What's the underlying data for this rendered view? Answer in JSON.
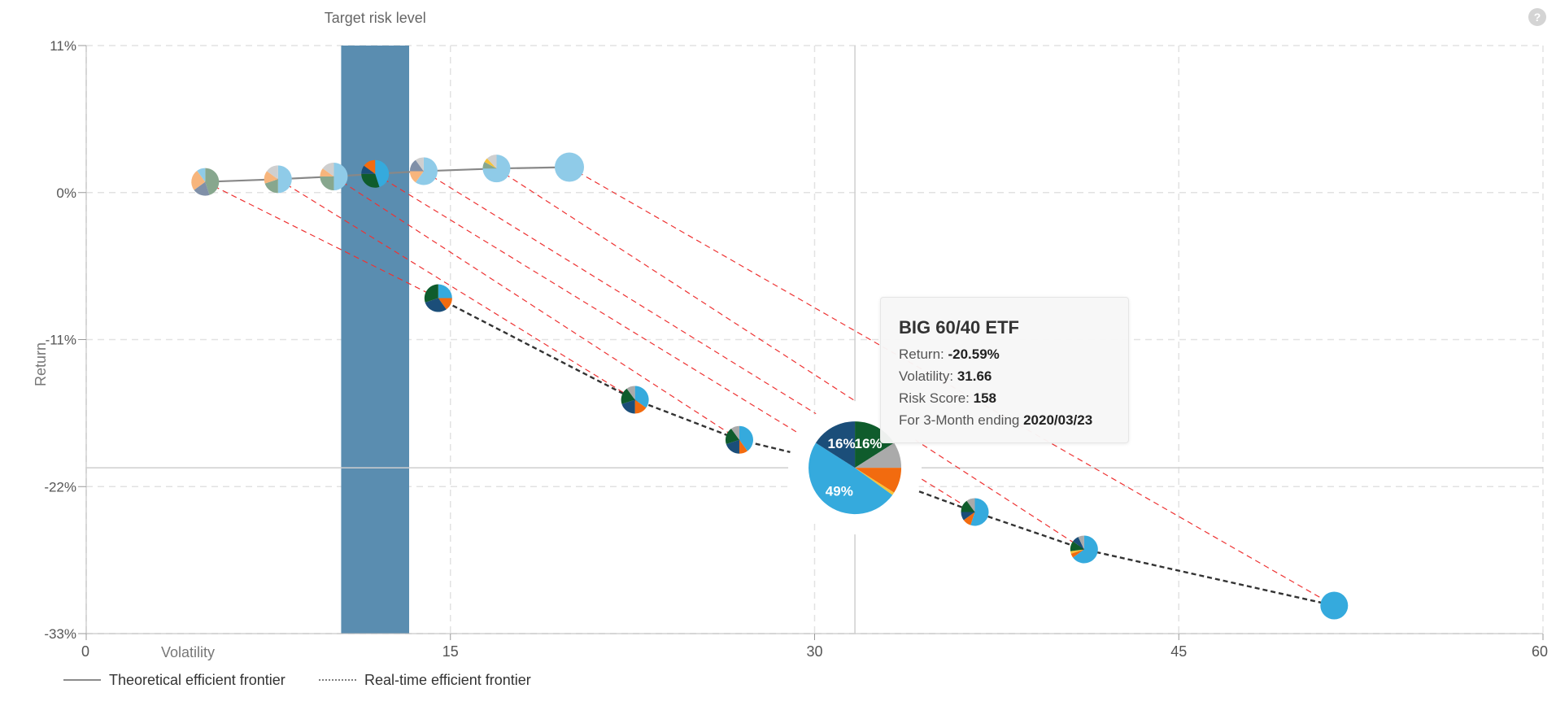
{
  "help": {
    "label": "?"
  },
  "chart_data": {
    "type": "scatter",
    "title": "",
    "xlabel": "Volatility",
    "ylabel": "Return",
    "xlim": [
      0,
      60
    ],
    "ylim": [
      -33,
      11
    ],
    "x_ticks": [
      0,
      15,
      30,
      45,
      60
    ],
    "y_ticks": [
      {
        "value": 11,
        "label": "11%"
      },
      {
        "value": 0,
        "label": "0%"
      },
      {
        "value": -11,
        "label": "-11%"
      },
      {
        "value": -22,
        "label": "-22%"
      },
      {
        "value": -33,
        "label": "-33%"
      }
    ],
    "grid": true,
    "target_band": {
      "label": "Target risk level",
      "x_from": 10.5,
      "x_to": 13.3,
      "color": "#5a8db0"
    },
    "crosshair": {
      "x": 31.66,
      "y": -20.59
    },
    "legend": {
      "placement": "bottom-left",
      "items": [
        {
          "label": "Theoretical efficient frontier",
          "style": "solid"
        },
        {
          "label": "Real-time efficient frontier",
          "style": "dotted"
        }
      ]
    },
    "colors": {
      "navy": "#1b4e79",
      "green": "#0f5c2c",
      "orange": "#f26b0f",
      "sky": "#35aadd",
      "grey": "#aaaaaa",
      "peach": "#f7b57c",
      "sage": "#87a78e",
      "lightblue": "#8fcbe8",
      "slate": "#8090a8",
      "pale": "#cfcfcf",
      "yellow": "#f6c33a",
      "theoretical_line": "#888888",
      "realtime_line": "#333333",
      "link_line": "#ee3333"
    },
    "theoretical_series": [
      {
        "x": 4.9,
        "y": 0.8
      },
      {
        "x": 7.9,
        "y": 1.0
      },
      {
        "x": 10.2,
        "y": 1.2
      },
      {
        "x": 11.9,
        "y": 1.4
      },
      {
        "x": 13.9,
        "y": 1.6
      },
      {
        "x": 16.9,
        "y": 1.8
      },
      {
        "x": 19.9,
        "y": 1.9
      }
    ],
    "realtime_series": [
      {
        "x": 14.5,
        "y": -7.9
      },
      {
        "x": 22.6,
        "y": -15.5
      },
      {
        "x": 26.9,
        "y": -18.5
      },
      {
        "x": 31.66,
        "y": -20.59
      },
      {
        "x": 36.6,
        "y": -23.9
      },
      {
        "x": 41.1,
        "y": -26.7
      },
      {
        "x": 51.4,
        "y": -30.9
      }
    ],
    "links": [
      {
        "from": 0,
        "to": 0
      },
      {
        "from": 1,
        "to": 1
      },
      {
        "from": 2,
        "to": 2
      },
      {
        "from": 3,
        "to": 3
      },
      {
        "from": 4,
        "to": 4
      },
      {
        "from": 5,
        "to": 5
      },
      {
        "from": 6,
        "to": 6
      }
    ],
    "theoretical_pies": [
      {
        "slices": [
          {
            "color": "sage",
            "value": 45
          },
          {
            "color": "slate",
            "value": 20
          },
          {
            "color": "peach",
            "value": 25
          },
          {
            "color": "lightblue",
            "value": 10
          }
        ]
      },
      {
        "slices": [
          {
            "color": "lightblue",
            "value": 50
          },
          {
            "color": "sage",
            "value": 20
          },
          {
            "color": "peach",
            "value": 15
          },
          {
            "color": "pale",
            "value": 15
          }
        ]
      },
      {
        "slices": [
          {
            "color": "lightblue",
            "value": 50
          },
          {
            "color": "sage",
            "value": 25
          },
          {
            "color": "peach",
            "value": 10
          },
          {
            "color": "pale",
            "value": 15
          }
        ]
      },
      {
        "slices": [
          {
            "color": "sky",
            "value": 45
          },
          {
            "color": "green",
            "value": 30
          },
          {
            "color": "navy",
            "value": 10
          },
          {
            "color": "orange",
            "value": 15
          }
        ]
      },
      {
        "slices": [
          {
            "color": "lightblue",
            "value": 60
          },
          {
            "color": "peach",
            "value": 15
          },
          {
            "color": "slate",
            "value": 15
          },
          {
            "color": "pale",
            "value": 10
          }
        ]
      },
      {
        "slices": [
          {
            "color": "lightblue",
            "value": 75
          },
          {
            "color": "sage",
            "value": 8
          },
          {
            "color": "yellow",
            "value": 5
          },
          {
            "color": "pale",
            "value": 12
          }
        ]
      },
      {
        "slices": [
          {
            "color": "lightblue",
            "value": 100
          }
        ]
      }
    ],
    "realtime_pies": [
      {
        "slices": [
          {
            "color": "sky",
            "value": 25
          },
          {
            "color": "orange",
            "value": 15
          },
          {
            "color": "navy",
            "value": 30
          },
          {
            "color": "green",
            "value": 30
          }
        ]
      },
      {
        "slices": [
          {
            "color": "sky",
            "value": 35
          },
          {
            "color": "orange",
            "value": 15
          },
          {
            "color": "navy",
            "value": 20
          },
          {
            "color": "green",
            "value": 20
          },
          {
            "color": "grey",
            "value": 10
          }
        ]
      },
      {
        "slices": [
          {
            "color": "sky",
            "value": 40
          },
          {
            "color": "orange",
            "value": 10
          },
          {
            "color": "navy",
            "value": 20
          },
          {
            "color": "green",
            "value": 20
          },
          {
            "color": "grey",
            "value": 10
          }
        ]
      },
      {
        "slices": [
          {
            "color": "green",
            "value": 16,
            "label": "16%"
          },
          {
            "color": "grey",
            "value": 9
          },
          {
            "color": "orange",
            "value": 9
          },
          {
            "color": "yellow",
            "value": 1
          },
          {
            "color": "sky",
            "value": 49,
            "label": "49%"
          },
          {
            "color": "navy",
            "value": 16,
            "label": "16%"
          }
        ]
      },
      {
        "slices": [
          {
            "color": "sky",
            "value": 55
          },
          {
            "color": "orange",
            "value": 10
          },
          {
            "color": "navy",
            "value": 10
          },
          {
            "color": "green",
            "value": 15
          },
          {
            "color": "grey",
            "value": 10
          }
        ]
      },
      {
        "slices": [
          {
            "color": "sky",
            "value": 65
          },
          {
            "color": "orange",
            "value": 5
          },
          {
            "color": "yellow",
            "value": 3
          },
          {
            "color": "green",
            "value": 12
          },
          {
            "color": "navy",
            "value": 8
          },
          {
            "color": "grey",
            "value": 7
          }
        ]
      },
      {
        "slices": [
          {
            "color": "sky",
            "value": 100
          }
        ]
      }
    ],
    "highlight_index": 3
  },
  "tooltip": {
    "title": "BIG 60/40 ETF",
    "return_label": "Return: ",
    "return_value": "-20.59%",
    "volatility_label": "Volatility: ",
    "volatility_value": "31.66",
    "risk_label": "Risk Score: ",
    "risk_value": "158",
    "period_label": "For 3-Month ending ",
    "period_value": "2020/03/23"
  }
}
